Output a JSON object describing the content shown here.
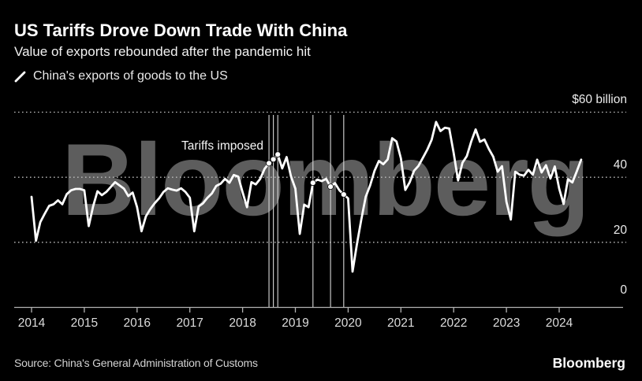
{
  "header": {
    "title": "US Tariffs Drove Down Trade With China",
    "subtitle": "Value of exports rebounded after the pandemic hit"
  },
  "legend": {
    "marker": "slash-line",
    "label": "China's exports of goods to the US"
  },
  "annotation": {
    "tariffs_label": "Tariffs imposed"
  },
  "watermark": "Bloomberg",
  "footer": {
    "source": "Source: China's General Administration of Customs",
    "logo": "Bloomberg"
  },
  "colors": {
    "background": "#000000",
    "series_line": "#ffffff",
    "grid_dotted": "#bdbdbd",
    "axis": "#b3b3b3",
    "tariff_line": "#d9d9d9",
    "marker_dot": "#ffffff",
    "watermark": "#5d5d5d",
    "text_primary": "#ffffff",
    "text_secondary": "#dcdcdc"
  },
  "chart_data": {
    "type": "line",
    "title": "China's exports of goods to the US",
    "unit": "USD billion, monthly",
    "frequency": "monthly",
    "start": {
      "year": 2014,
      "month": 1
    },
    "end": {
      "year": 2024,
      "month": 6
    },
    "ylim": [
      0,
      60
    ],
    "grid": "horizontal-dotted",
    "legend_position": "top-left",
    "x_ticks": [
      "2014",
      "2015",
      "2016",
      "2017",
      "2018",
      "2019",
      "2020",
      "2021",
      "2022",
      "2023",
      "2024"
    ],
    "y_ticks": [
      {
        "value": 60,
        "label": "$60 billion"
      },
      {
        "value": 40,
        "label": "40"
      },
      {
        "value": 20,
        "label": "20"
      },
      {
        "value": 0,
        "label": "0"
      }
    ],
    "values": [
      34.0,
      20.5,
      26.2,
      28.8,
      31.2,
      31.7,
      32.9,
      31.7,
      34.8,
      36.0,
      36.4,
      36.4,
      36.0,
      25.0,
      31.0,
      35.7,
      34.5,
      35.5,
      37.0,
      38.5,
      37.5,
      36.5,
      34.2,
      35.3,
      30.8,
      23.4,
      28.0,
      30.2,
      32.0,
      33.5,
      35.5,
      36.6,
      36.2,
      35.9,
      36.6,
      35.5,
      33.7,
      23.4,
      31.0,
      32.0,
      33.7,
      35.0,
      37.3,
      38.0,
      39.5,
      38.3,
      40.7,
      40.2,
      35.4,
      30.8,
      38.5,
      37.8,
      39.5,
      42.6,
      44.3,
      45.5,
      47.0,
      42.7,
      46.2,
      40.3,
      36.5,
      22.6,
      31.6,
      30.8,
      38.3,
      39.3,
      38.8,
      39.5,
      37.1,
      38.2,
      36.0,
      34.7,
      33.5,
      11.0,
      19.5,
      27.0,
      34.0,
      37.5,
      42.0,
      45.0,
      44.0,
      45.5,
      52.0,
      51.0,
      45.8,
      36.1,
      38.5,
      42.0,
      43.5,
      46.0,
      48.5,
      51.5,
      57.0,
      54.2,
      55.2,
      55.0,
      47.5,
      39.0,
      44.5,
      46.5,
      51.0,
      54.7,
      50.9,
      51.6,
      48.7,
      46.3,
      41.7,
      43.4,
      32.5,
      27.0,
      41.7,
      40.8,
      40.5,
      42.3,
      40.8,
      45.4,
      41.5,
      43.7,
      39.6,
      43.3,
      36.5,
      31.8,
      39.4,
      38.4,
      41.8,
      45.4
    ],
    "tariff_events": [
      {
        "date": "2018-07",
        "value": 44.3
      },
      {
        "date": "2018-08",
        "value": 45.5
      },
      {
        "date": "2018-09",
        "value": 47.0
      },
      {
        "date": "2019-05",
        "value": 38.3
      },
      {
        "date": "2019-09",
        "value": 37.1
      },
      {
        "date": "2019-12",
        "value": 34.7
      }
    ]
  }
}
